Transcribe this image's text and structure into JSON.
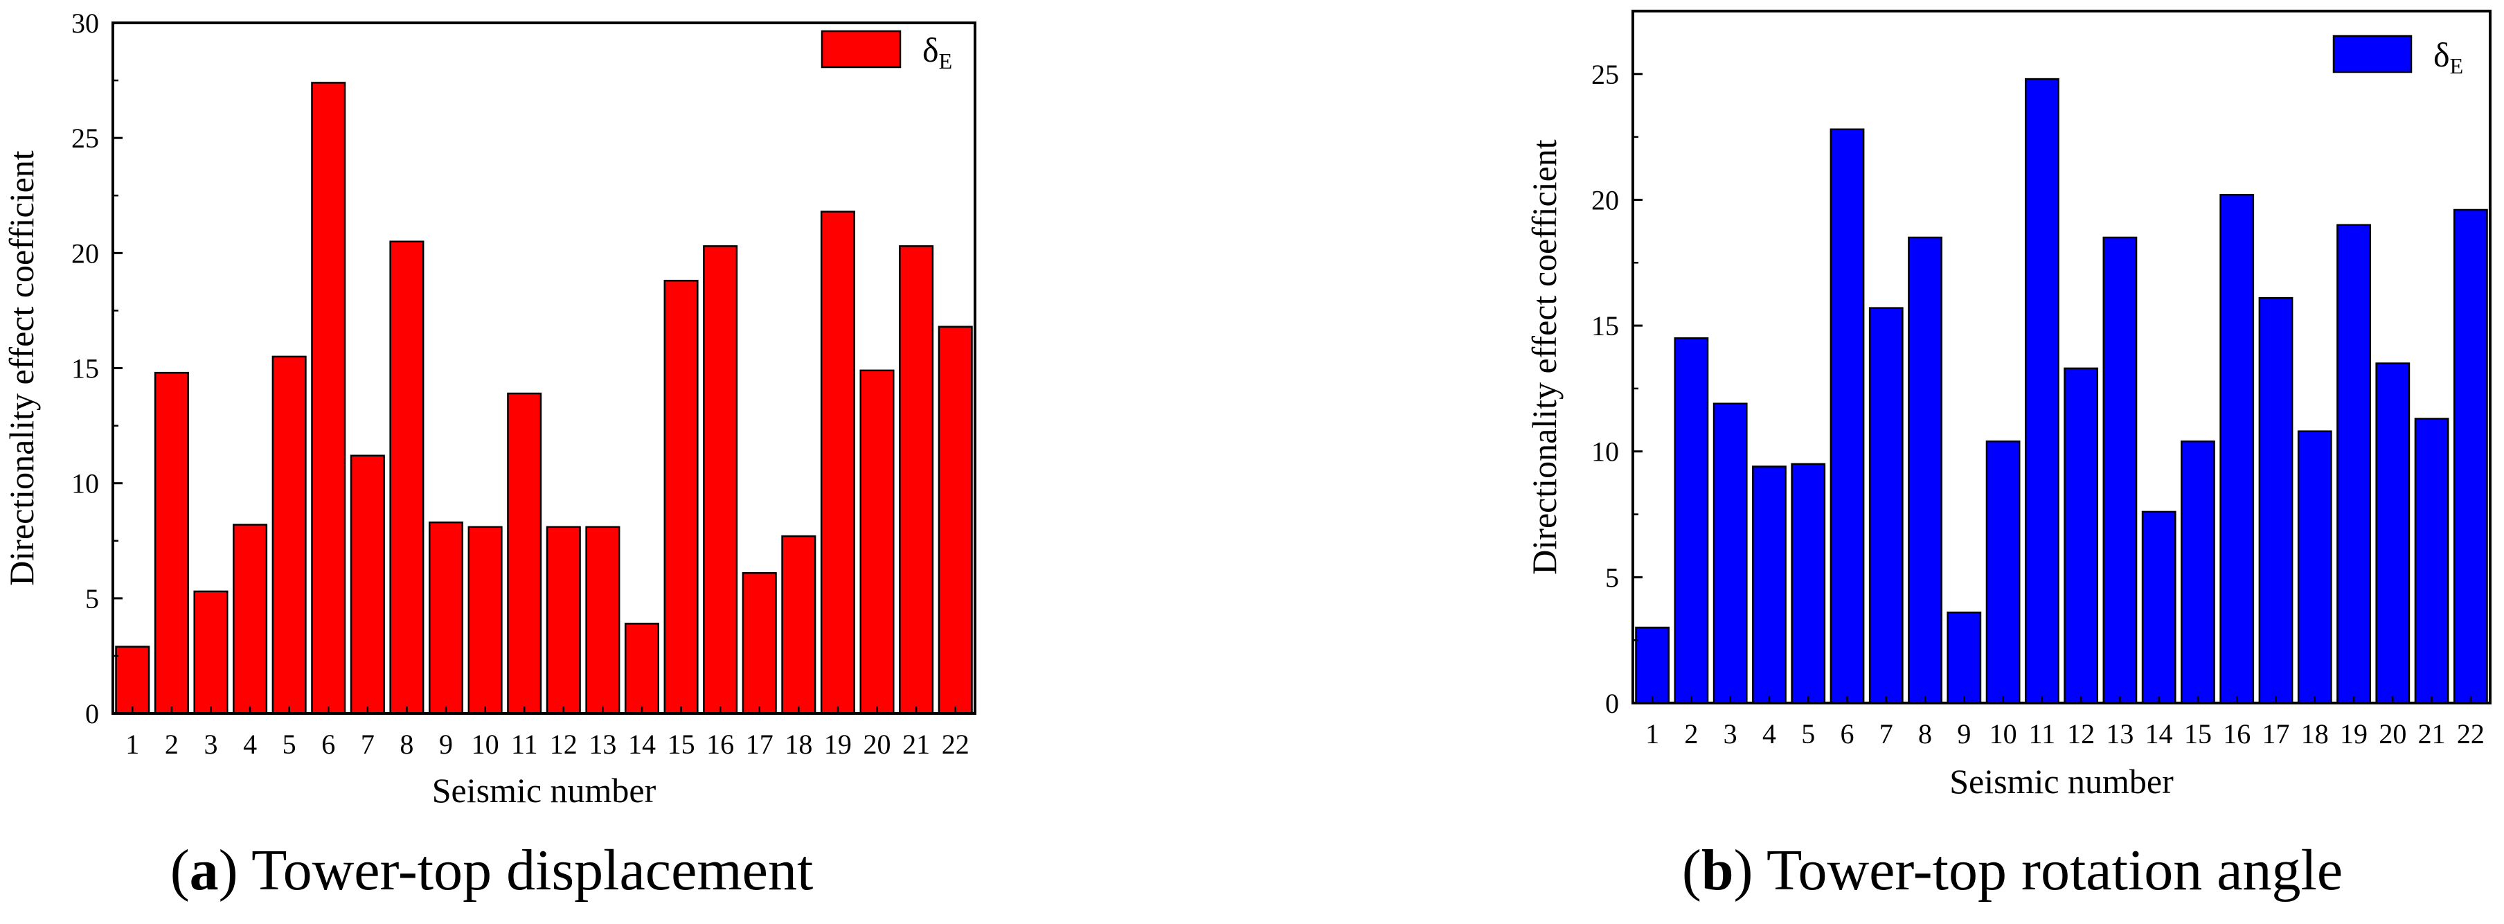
{
  "charts": [
    {
      "panel_letter": "a",
      "caption": "Tower-top displacement",
      "bar_color": "#ff0000",
      "legend": {
        "symbol": "δ",
        "subscript": "E"
      },
      "chart_data": {
        "type": "bar",
        "title": "",
        "xlabel": "Seismic number",
        "ylabel": "Directionality effect coefficient",
        "ylim": [
          0,
          30
        ],
        "yticks": [
          0,
          5,
          10,
          15,
          20,
          25,
          30
        ],
        "categories": [
          "1",
          "2",
          "3",
          "4",
          "5",
          "6",
          "7",
          "8",
          "9",
          "10",
          "11",
          "12",
          "13",
          "14",
          "15",
          "16",
          "17",
          "18",
          "19",
          "20",
          "21",
          "22"
        ],
        "values": [
          2.9,
          14.8,
          5.3,
          8.2,
          15.5,
          27.4,
          11.2,
          20.5,
          8.3,
          8.1,
          13.9,
          8.1,
          8.1,
          3.9,
          18.8,
          20.3,
          6.1,
          7.7,
          21.8,
          14.9,
          20.3,
          16.8
        ],
        "legend_entries": [
          "δE"
        ],
        "legend_position": "top-right",
        "grid": false
      }
    },
    {
      "panel_letter": "b",
      "caption": "Tower-top rotation angle",
      "bar_color": "#0000ff",
      "legend": {
        "symbol": "δ",
        "subscript": "E"
      },
      "chart_data": {
        "type": "bar",
        "title": "",
        "xlabel": "Seismic number",
        "ylabel": "Directionality effect coefficient",
        "ylim": [
          0,
          27.5
        ],
        "yticks": [
          0,
          5,
          10,
          15,
          20,
          25
        ],
        "categories": [
          "1",
          "2",
          "3",
          "4",
          "5",
          "6",
          "7",
          "8",
          "9",
          "10",
          "11",
          "12",
          "13",
          "14",
          "15",
          "16",
          "17",
          "18",
          "19",
          "20",
          "21",
          "22"
        ],
        "values": [
          3.0,
          14.5,
          11.9,
          9.4,
          9.5,
          22.8,
          15.7,
          18.5,
          3.6,
          10.4,
          24.8,
          13.3,
          18.5,
          7.6,
          10.4,
          20.2,
          16.1,
          10.8,
          19.0,
          13.5,
          11.3,
          19.6
        ],
        "legend_entries": [
          "δE"
        ],
        "legend_position": "top-right",
        "grid": false
      }
    }
  ]
}
